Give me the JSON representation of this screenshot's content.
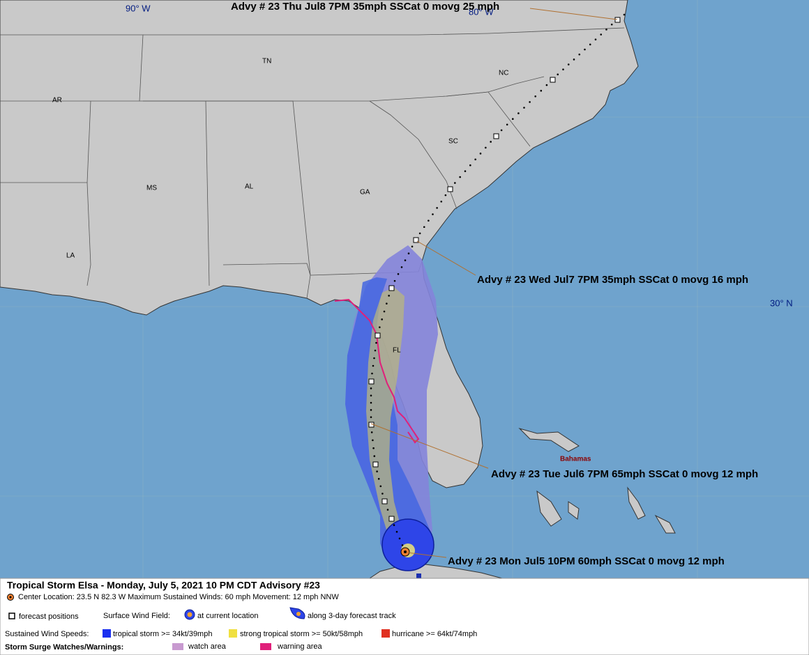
{
  "map": {
    "coords": {
      "lon_90": "90° W",
      "lon_80": "80° W",
      "lat_30": "30° N"
    },
    "states": [
      "TN",
      "NC",
      "AR",
      "SC",
      "MS",
      "AL",
      "GA",
      "LA",
      "FL"
    ],
    "place": "Bahamas",
    "advisories": [
      "Advy # 23 Thu Jul8 7PM  35mph SSCat 0 movg 25 mph",
      "Advy # 23 Wed Jul7 7PM  35mph SSCat 0 movg 16 mph",
      "Advy # 23 Tue Jul6 7PM  65mph SSCat 0 movg 12 mph",
      "Advy # 23 Mon Jul5 10PM  60mph SSCat 0 movg 12 mph"
    ]
  },
  "legend": {
    "title": "Tropical Storm Elsa  -  Monday, July 5, 2021  10 PM CDT   Advisory #23",
    "center": "Center Location: 23.5 N  82.3 W   Maximum Sustained Winds: 60 mph   Movement: 12 mph NNW",
    "forecast_positions": "forecast positions",
    "surface_wind_field": "Surface Wind Field:",
    "at_current": "at current location",
    "along_track": "along 3-day forecast track",
    "sustained": "Sustained Wind Speeds:",
    "ts": "tropical storm >= 34kt/39mph",
    "sts": "strong tropical storm >= 50kt/58mph",
    "hu": "hurricane >= 64kt/74mph",
    "surge": "Storm Surge Watches/Warnings:",
    "watch": "watch area",
    "warning": "warning area"
  }
}
